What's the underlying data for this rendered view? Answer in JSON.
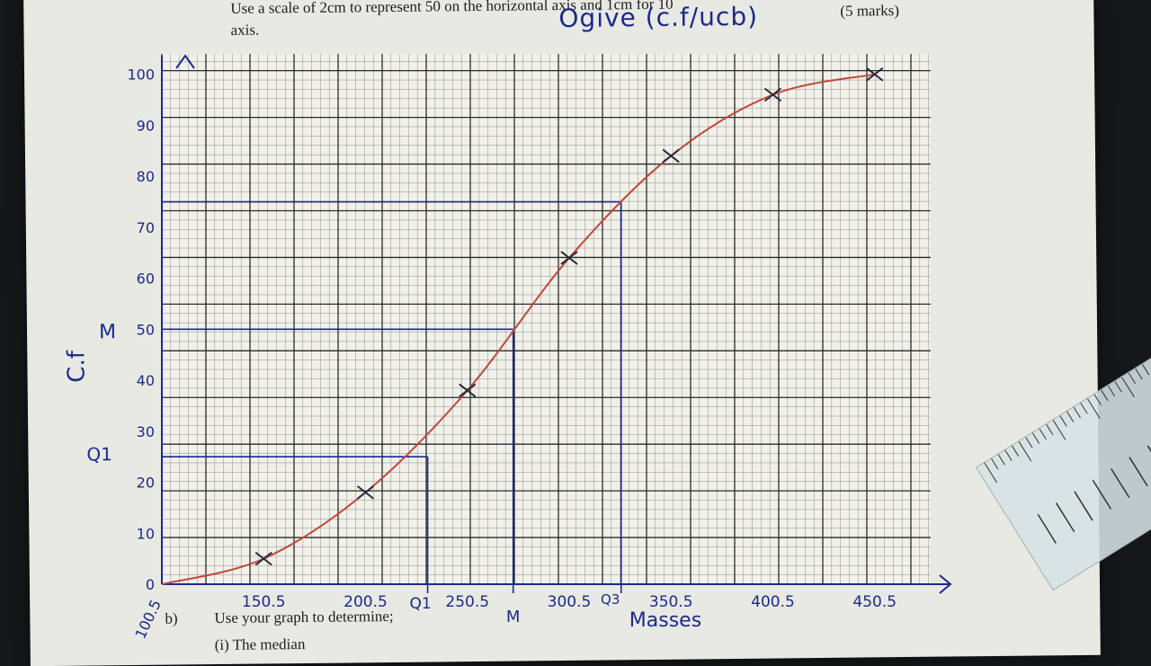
{
  "page": {
    "instruction_line1": "Use a scale of 2cm to represent 50 on the horizontal axis and 1cm for 10",
    "instruction_line2": "axis.",
    "marks": "(5 marks)",
    "part_b_label": "b)",
    "part_b_text": "Use your graph to determine;",
    "next_line": "(i)    The median"
  },
  "annotations": {
    "title": "Ogive (c.f/ucb)",
    "y_axis_label": "C.f",
    "q1_side_label": "Q1",
    "median_side_label": "M",
    "x_axis_label": "Masses",
    "q1_x_label": "Q1",
    "median_x_label": "M",
    "q3_x_label": "Q3"
  },
  "chart_data": {
    "type": "line",
    "title": "Ogive (c.f/ucb)",
    "xlabel": "Masses",
    "ylabel": "C.f",
    "x_tick_labels": [
      "100.5",
      "150.5",
      "200.5",
      "250.5",
      "300.5",
      "350.5",
      "400.5",
      "450.5"
    ],
    "y_tick_labels": [
      "0",
      "10",
      "20",
      "30",
      "40",
      "50",
      "60",
      "70",
      "80",
      "90",
      "100"
    ],
    "xlim": [
      100.5,
      478
    ],
    "ylim": [
      0,
      104
    ],
    "series": [
      {
        "x": [
          100.5,
          150.5,
          200.5,
          250.5,
          300.5,
          350.5,
          400.5,
          450.5
        ],
        "y": [
          0,
          5,
          18,
          38,
          64,
          84,
          96,
          100
        ]
      }
    ],
    "reading_lines": [
      {
        "label": "Q1",
        "y": 25,
        "x": 231
      },
      {
        "label": "M",
        "y": 50,
        "x": 273
      },
      {
        "label": "Q3",
        "y": 75,
        "x": 326
      }
    ],
    "grid": true,
    "colors": {
      "curve": "#c0483a",
      "ink": "#1b2a8a",
      "grid_major": "#2a2a2a",
      "grid_minor": "#8d8d8d"
    }
  }
}
